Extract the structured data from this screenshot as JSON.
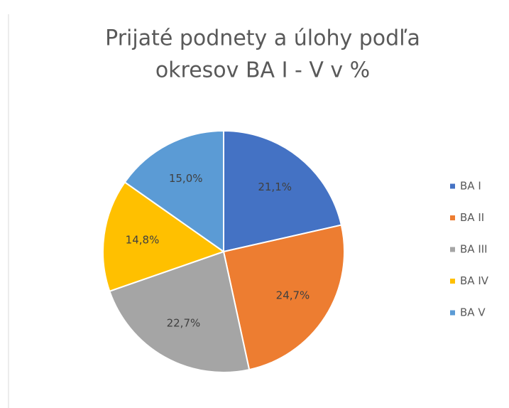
{
  "chart_data": {
    "type": "pie",
    "title": [
      "Prijaté podnety a úlohy podľa",
      "okresov BA I - V v %"
    ],
    "categories": [
      "BA I",
      "BA II",
      "BA III",
      "BA IV",
      "BA V"
    ],
    "values": [
      21.1,
      24.7,
      22.7,
      14.8,
      15.0
    ],
    "value_labels": [
      "21,1%",
      "24,7%",
      "22,7%",
      "14,8%",
      "15,0%"
    ],
    "colors": [
      "#4472c4",
      "#ed7d31",
      "#a5a5a5",
      "#ffc000",
      "#5b9bd5"
    ],
    "legend": "right"
  }
}
